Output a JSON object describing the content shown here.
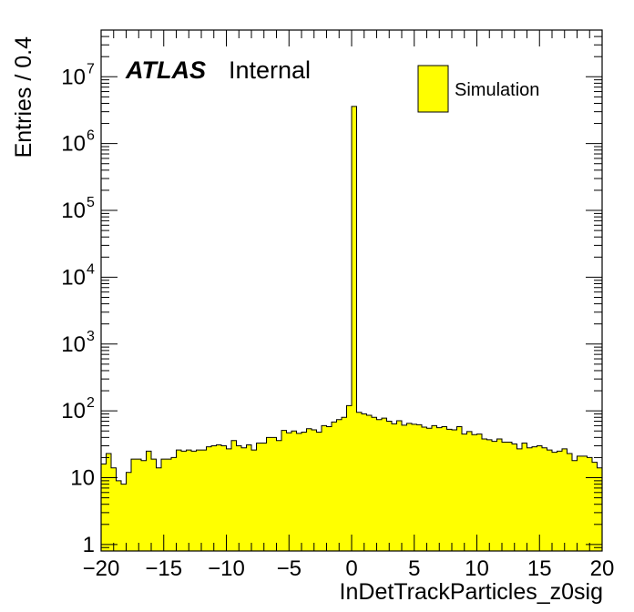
{
  "chart_data": {
    "type": "bar",
    "xlabel": "InDetTrackParticles_z0sig",
    "ylabel": "Entries / 0.4",
    "xlim": [
      -20,
      20
    ],
    "ylim": [
      0.8,
      50000000
    ],
    "log_y": true,
    "grid": false,
    "legend_position": "top-right",
    "x_ticks": [
      -20,
      -15,
      -10,
      -5,
      0,
      5,
      10,
      15,
      20
    ],
    "x_tick_labels": [
      "−20",
      "−15",
      "−10",
      "−5",
      "0",
      "5",
      "10",
      "15",
      "20"
    ],
    "y_ticks": [
      {
        "value": 1,
        "base": "1",
        "exp": ""
      },
      {
        "value": 10,
        "base": "10",
        "exp": ""
      },
      {
        "value": 100,
        "base": "10",
        "exp": "2"
      },
      {
        "value": 1000,
        "base": "10",
        "exp": "3"
      },
      {
        "value": 10000,
        "base": "10",
        "exp": "4"
      },
      {
        "value": 100000,
        "base": "10",
        "exp": "5"
      },
      {
        "value": 1000000,
        "base": "10",
        "exp": "6"
      },
      {
        "value": 10000000,
        "base": "10",
        "exp": "7"
      }
    ],
    "bin_width": 0.4,
    "fill_color": "#ffff00",
    "line_color": "#000000",
    "series": [
      {
        "name": "Simulation",
        "bin_low_edges": [
          -20,
          -19.6,
          -19.2,
          -18.8,
          -18.4,
          -18,
          -17.6,
          -17.2,
          -16.8,
          -16.4,
          -16,
          -15.6,
          -15.2,
          -14.8,
          -14.4,
          -14,
          -13.6,
          -13.2,
          -12.8,
          -12.4,
          -12,
          -11.6,
          -11.2,
          -10.8,
          -10.4,
          -10,
          -9.6,
          -9.2,
          -8.8,
          -8.4,
          -8,
          -7.6,
          -7.2,
          -6.8,
          -6.4,
          -6,
          -5.6,
          -5.2,
          -4.8,
          -4.4,
          -4,
          -3.6,
          -3.2,
          -2.8,
          -2.4,
          -2,
          -1.6,
          -1.2,
          -0.8,
          -0.4,
          0,
          0.4,
          0.8,
          1.2,
          1.6,
          2,
          2.4,
          2.8,
          3.2,
          3.6,
          4,
          4.4,
          4.8,
          5.2,
          5.6,
          6,
          6.4,
          6.8,
          7.2,
          7.6,
          8,
          8.4,
          8.8,
          9.2,
          9.6,
          10,
          10.4,
          10.8,
          11.2,
          11.6,
          12,
          12.4,
          12.8,
          13.2,
          13.6,
          14,
          14.4,
          14.8,
          15.2,
          15.6,
          16,
          16.4,
          16.8,
          17.2,
          17.6,
          18,
          18.4,
          18.8,
          19.2,
          19.6
        ],
        "values": [
          16,
          23,
          14,
          9,
          8,
          12,
          19,
          19,
          18,
          25,
          19,
          14,
          19,
          19,
          20,
          26,
          25,
          26,
          25,
          26,
          26,
          29,
          30,
          31,
          30,
          27,
          36,
          30,
          28,
          31,
          26,
          33,
          33,
          40,
          40,
          36,
          51,
          47,
          50,
          46,
          48,
          54,
          52,
          48,
          60,
          58,
          68,
          74,
          80,
          120,
          3600000,
          95,
          90,
          86,
          80,
          74,
          78,
          70,
          64,
          71,
          61,
          65,
          63,
          62,
          57,
          55,
          60,
          56,
          58,
          53,
          52,
          58,
          45,
          49,
          44,
          45,
          38,
          37,
          35,
          38,
          34,
          34,
          32,
          27,
          33,
          28,
          29,
          30,
          28,
          26,
          24,
          25,
          27,
          23,
          18,
          21,
          21,
          20,
          17,
          14
        ]
      }
    ],
    "legend_entries": [
      "Simulation"
    ],
    "annotations": {
      "experiment": "ATLAS",
      "status": "Internal"
    }
  }
}
